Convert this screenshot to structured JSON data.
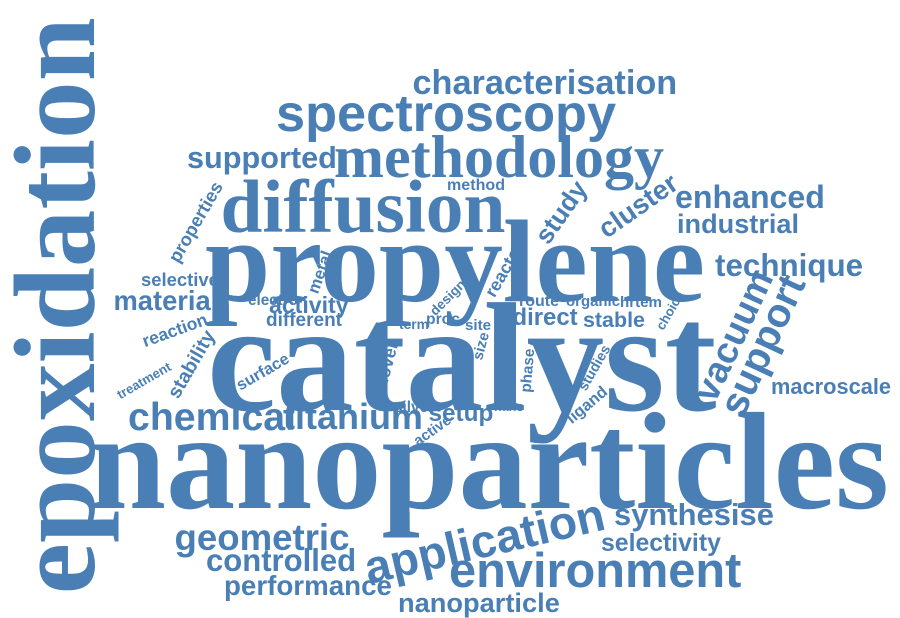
{
  "color": "#4a7fb5",
  "words": [
    {
      "text": "nanoparticles"
    },
    {
      "text": "catalyst"
    },
    {
      "text": "epoxidation"
    },
    {
      "text": "propylene"
    },
    {
      "text": "diffusion"
    },
    {
      "text": "methodology"
    },
    {
      "text": "spectroscopy"
    },
    {
      "text": "characterisation"
    },
    {
      "text": "application"
    },
    {
      "text": "environment"
    },
    {
      "text": "support"
    },
    {
      "text": "vacuum"
    },
    {
      "text": "geometric"
    },
    {
      "text": "chemical"
    },
    {
      "text": "titanium"
    },
    {
      "text": "controlled"
    },
    {
      "text": "synthesise"
    },
    {
      "text": "selectivity"
    },
    {
      "text": "performance"
    },
    {
      "text": "nanoparticle"
    },
    {
      "text": "technique"
    },
    {
      "text": "enhanced"
    },
    {
      "text": "industrial"
    },
    {
      "text": "cluster"
    },
    {
      "text": "supported"
    },
    {
      "text": "study"
    },
    {
      "text": "material"
    },
    {
      "text": "macroscale"
    },
    {
      "text": "activity"
    },
    {
      "text": "stability"
    },
    {
      "text": "properties"
    },
    {
      "text": "selective"
    },
    {
      "text": "reaction"
    },
    {
      "text": "treatment"
    },
    {
      "text": "direct"
    },
    {
      "text": "stable"
    },
    {
      "text": "setup"
    },
    {
      "text": "different"
    },
    {
      "text": "surface"
    },
    {
      "text": "route"
    },
    {
      "text": "organic"
    },
    {
      "text": "hrtem"
    },
    {
      "text": "method"
    },
    {
      "text": "electro"
    },
    {
      "text": "design"
    },
    {
      "text": "reactor"
    },
    {
      "text": "metal"
    },
    {
      "text": "novel"
    },
    {
      "text": "phase"
    },
    {
      "text": "studies"
    },
    {
      "text": "choice"
    },
    {
      "text": "term"
    },
    {
      "text": "proc"
    },
    {
      "text": "site"
    },
    {
      "text": "size"
    },
    {
      "text": "silver"
    },
    {
      "text": "active"
    },
    {
      "text": "nano"
    },
    {
      "text": "ligand"
    }
  ]
}
